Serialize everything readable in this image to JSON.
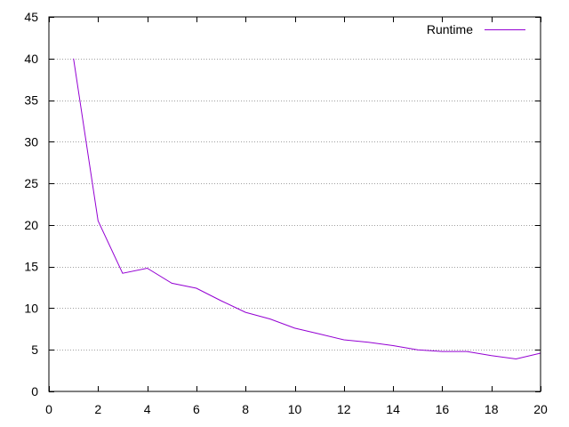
{
  "chart_data": {
    "type": "line",
    "title": "",
    "xlabel": "",
    "ylabel": "",
    "xlim": [
      0,
      20
    ],
    "ylim": [
      0,
      45
    ],
    "xticks": [
      0,
      2,
      4,
      6,
      8,
      10,
      12,
      14,
      16,
      18,
      20
    ],
    "yticks": [
      0,
      5,
      10,
      15,
      20,
      25,
      30,
      35,
      40,
      45
    ],
    "grid": {
      "y": true,
      "x": false,
      "style": "dotted"
    },
    "legend": {
      "position": "top-right"
    },
    "series": [
      {
        "name": "Runtime",
        "color": "#9400d3",
        "x": [
          1,
          2,
          3,
          4,
          5,
          6,
          7,
          8,
          9,
          10,
          11,
          12,
          13,
          14,
          15,
          16,
          17,
          18,
          19,
          20
        ],
        "y": [
          40.0,
          20.5,
          14.2,
          14.8,
          13.0,
          12.4,
          10.9,
          9.5,
          8.7,
          7.6,
          6.9,
          6.2,
          5.9,
          5.5,
          5.0,
          4.8,
          4.8,
          4.3,
          3.9,
          4.6
        ]
      }
    ]
  }
}
